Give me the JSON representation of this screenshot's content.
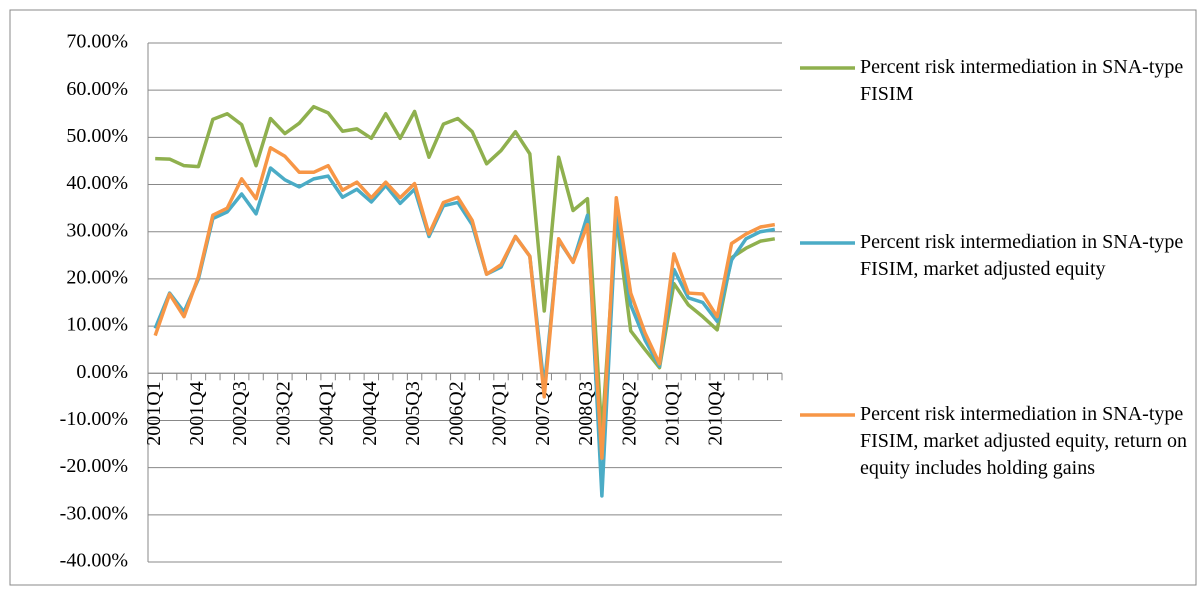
{
  "chart_data": {
    "type": "line",
    "legend": "right",
    "grid": true,
    "categories": [
      "2001Q1",
      null,
      null,
      "2001Q4",
      null,
      null,
      "2002Q3",
      null,
      null,
      "2003Q2",
      null,
      null,
      "2004Q1",
      null,
      null,
      "2004Q4",
      null,
      null,
      "2005Q3",
      null,
      null,
      "2006Q2",
      null,
      null,
      "2007Q1",
      null,
      null,
      "2007Q4",
      null,
      null,
      "2008Q3",
      null,
      null,
      "2009Q2",
      null,
      null,
      "2010Q1",
      null,
      null,
      "2010Q4",
      null,
      null,
      null,
      null
    ],
    "ylim": [
      -40,
      70
    ],
    "yticks": [
      {
        "value": -40,
        "label": "-40.00%"
      },
      {
        "value": -30,
        "label": "-30.00%"
      },
      {
        "value": -20,
        "label": "-20.00%"
      },
      {
        "value": -10,
        "label": "-10.00%"
      },
      {
        "value": 0,
        "label": "0.00%"
      },
      {
        "value": 10,
        "label": "10.00%"
      },
      {
        "value": 20,
        "label": "20.00%"
      },
      {
        "value": 30,
        "label": "30.00%"
      },
      {
        "value": 40,
        "label": "40.00%"
      },
      {
        "value": 50,
        "label": "50.00%"
      },
      {
        "value": 60,
        "label": "60.00%"
      },
      {
        "value": 70,
        "label": "70.00%"
      }
    ],
    "series": [
      {
        "name": "Percent risk intermediation in SNA-type FISIM",
        "color": "#8fb04e",
        "values": [
          45.5,
          45.4,
          44,
          43.8,
          53.8,
          55,
          52.7,
          44,
          54,
          50.8,
          53,
          56.5,
          55.2,
          51.3,
          51.8,
          49.8,
          55,
          49.8,
          55.5,
          45.8,
          52.8,
          54,
          51.2,
          44.4,
          47.2,
          51.2,
          46.5,
          13.2,
          45.8,
          34.5,
          37,
          -13,
          33,
          9,
          5,
          1.2,
          19,
          14.5,
          12,
          9.2,
          24.5,
          26.5,
          28,
          28.5
        ]
      },
      {
        "name": "Percent risk intermediation in SNA-type FISIM, market adjusted equity",
        "color": "#4bacc6",
        "values": [
          9.5,
          17,
          13,
          20,
          32.8,
          34.2,
          38,
          33.8,
          43.5,
          41,
          39.5,
          41.2,
          41.8,
          37.3,
          39,
          36.3,
          39.8,
          36,
          39,
          29,
          35.5,
          36.2,
          31.5,
          21,
          22.5,
          29,
          24.8,
          -3,
          28.2,
          23.6,
          33.5,
          -26,
          34,
          14.5,
          7,
          1.5,
          22,
          16,
          15,
          11,
          24,
          28.5,
          30,
          30.5
        ]
      },
      {
        "name": "Percent risk intermediation in SNA-type FISIM, market adjusted equity, return on equity includes holding gains",
        "color": "#f79646",
        "values": [
          8,
          16.8,
          12,
          20.5,
          33.5,
          35,
          41.2,
          37,
          47.8,
          46,
          42.6,
          42.6,
          44,
          38.8,
          40.5,
          37.2,
          40.5,
          37.2,
          40.2,
          29.5,
          36.2,
          37.3,
          32.4,
          21,
          23,
          29,
          24.8,
          -5,
          28.5,
          23.5,
          31.5,
          -18,
          37.2,
          17,
          8.5,
          2,
          25.3,
          17,
          16.8,
          12,
          27.5,
          29.5,
          31,
          31.5
        ]
      }
    ]
  }
}
